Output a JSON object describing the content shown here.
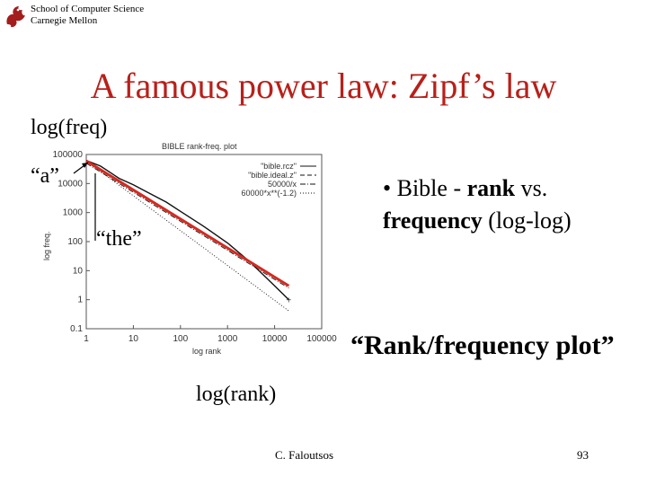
{
  "header": {
    "org_line1": "School of Computer Science",
    "org_line2": "Carnegie Mellon",
    "logo_icon": "dragon-logo-icon"
  },
  "slide": {
    "title": "A famous power law: Zipf’s law",
    "y_caption": "log(freq)",
    "x_caption": "log(rank)",
    "annotation_a": "“a”",
    "annotation_the": "“the”",
    "bullet": {
      "marker": "•",
      "part1": " Bible - ",
      "rank": "rank",
      "part2": " vs.",
      "frequency": "frequency",
      "part3": " (log-log)"
    },
    "plot_caption": "“Rank/frequency plot”",
    "author": "C. Faloutsos",
    "page_number": "93",
    "title_color": "#b8201a",
    "fit_line_color": "#d42a20"
  },
  "chart_data": {
    "type": "line",
    "title": "BIBLE rank-freq. plot",
    "xlabel": "log rank",
    "ylabel": "log freq.",
    "x_scale": "log",
    "y_scale": "log",
    "xlim": [
      1,
      100000
    ],
    "ylim": [
      0.1,
      100000
    ],
    "x_ticks": [
      "1",
      "10",
      "100",
      "1000",
      "10000",
      "100000"
    ],
    "y_ticks": [
      "0.1",
      "1",
      "10",
      "100",
      "1000",
      "10000",
      "100000"
    ],
    "legend_position": "top-right",
    "series": [
      {
        "name": "\"bible.rcz\"",
        "style": "solid",
        "x": [
          1,
          2,
          5,
          10,
          20,
          50,
          100,
          300,
          1000,
          3000,
          10000,
          20000
        ],
        "y": [
          62000,
          40000,
          15000,
          9000,
          5000,
          2300,
          1100,
          350,
          90,
          20,
          3,
          1
        ]
      },
      {
        "name": "\"bible.ideal.z\"",
        "style": "dashed",
        "x": [
          1,
          10,
          100,
          1000,
          10000,
          20000
        ],
        "y": [
          62000,
          6200,
          620,
          62,
          6.2,
          3.1
        ]
      },
      {
        "name": "50000/x",
        "style": "dash-dot",
        "x": [
          1,
          10,
          100,
          1000,
          10000,
          20000
        ],
        "y": [
          50000,
          5000,
          500,
          50,
          5,
          2.5
        ]
      },
      {
        "name": "60000*x**(-1.2)",
        "style": "dotted",
        "x": [
          1,
          10,
          100,
          1000,
          10000,
          20000
        ],
        "y": [
          60000,
          3786,
          239,
          15,
          0.95,
          0.41
        ]
      }
    ],
    "annotations": [
      "“a”",
      "“the”"
    ]
  }
}
